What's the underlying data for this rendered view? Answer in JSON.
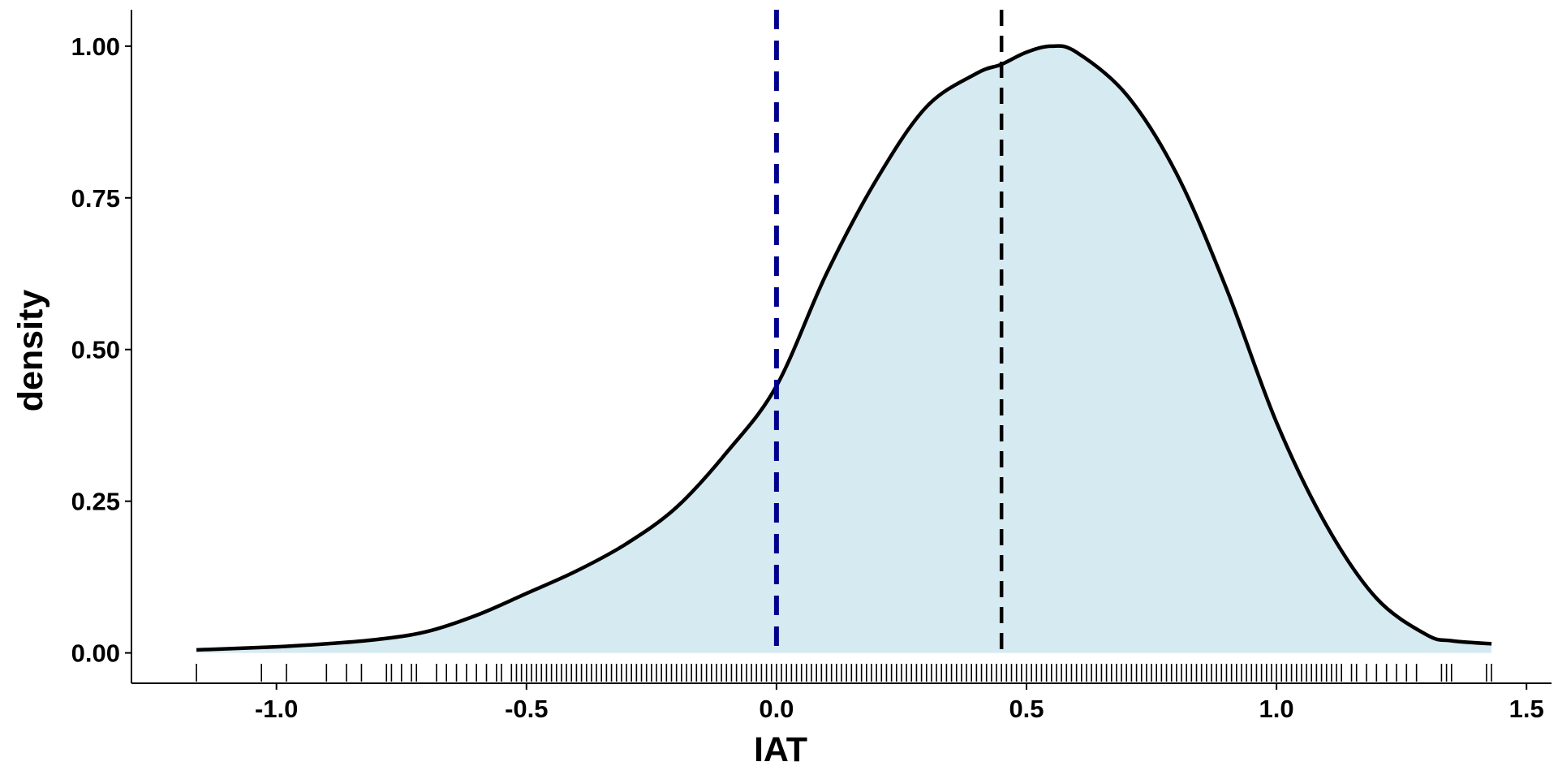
{
  "chart_data": {
    "type": "area",
    "title": "",
    "xlabel": "IAT",
    "ylabel": "density",
    "xlim": [
      -1.29,
      1.55
    ],
    "ylim": [
      -0.05,
      1.06
    ],
    "x_ticks": [
      -1.0,
      -0.5,
      0.0,
      0.5,
      1.0,
      1.5
    ],
    "x_tick_labels": [
      "-1.0",
      "-0.5",
      "0.0",
      "0.5",
      "1.0",
      "1.5"
    ],
    "y_ticks": [
      0.0,
      0.25,
      0.5,
      0.75,
      1.0
    ],
    "y_tick_labels": [
      "0.00",
      "0.25",
      "0.50",
      "0.75",
      "1.00"
    ],
    "grid": false,
    "legend": "none",
    "fill_color": "#d6eaf2",
    "line_color": "#000000",
    "series": [
      {
        "x": [
          -1.16,
          -1.0,
          -0.9,
          -0.8,
          -0.7,
          -0.6,
          -0.5,
          -0.4,
          -0.3,
          -0.2,
          -0.1,
          0.0,
          0.1,
          0.2,
          0.3,
          0.4,
          0.45,
          0.5,
          0.55,
          0.6,
          0.7,
          0.8,
          0.9,
          1.0,
          1.1,
          1.2,
          1.3,
          1.35,
          1.43
        ],
        "values": [
          0.005,
          0.01,
          0.015,
          0.022,
          0.035,
          0.062,
          0.098,
          0.135,
          0.18,
          0.24,
          0.33,
          0.44,
          0.625,
          0.78,
          0.9,
          0.955,
          0.97,
          0.99,
          1.0,
          0.99,
          0.92,
          0.79,
          0.6,
          0.38,
          0.21,
          0.09,
          0.03,
          0.02,
          0.015
        ]
      }
    ],
    "reference_lines": [
      {
        "x": 0.0,
        "color": "#00008b",
        "style": "dashed"
      },
      {
        "x": 0.45,
        "color": "#000000",
        "style": "dashed"
      }
    ],
    "rug": [
      -1.16,
      -1.03,
      -0.98,
      -0.9,
      -0.86,
      -0.83,
      -0.78,
      -0.77,
      -0.75,
      -0.73,
      -0.72,
      -0.68,
      -0.66,
      -0.64,
      -0.62,
      -0.6,
      -0.58,
      -0.56,
      -0.55,
      -0.53,
      -0.52,
      -0.51,
      -0.5,
      -0.49,
      -0.48,
      -0.47,
      -0.46,
      -0.45,
      -0.44,
      -0.43,
      -0.42,
      -0.41,
      -0.4,
      -0.39,
      -0.38,
      -0.37,
      -0.36,
      -0.35,
      -0.34,
      -0.33,
      -0.32,
      -0.31,
      -0.3,
      -0.29,
      -0.28,
      -0.27,
      -0.26,
      -0.25,
      -0.24,
      -0.23,
      -0.22,
      -0.21,
      -0.2,
      -0.19,
      -0.18,
      -0.17,
      -0.16,
      -0.15,
      -0.14,
      -0.13,
      -0.12,
      -0.11,
      -0.1,
      -0.09,
      -0.08,
      -0.07,
      -0.06,
      -0.05,
      -0.04,
      -0.03,
      -0.02,
      -0.01,
      0.0,
      0.01,
      0.02,
      0.03,
      0.04,
      0.05,
      0.06,
      0.07,
      0.08,
      0.09,
      0.1,
      0.11,
      0.12,
      0.13,
      0.14,
      0.15,
      0.16,
      0.17,
      0.18,
      0.19,
      0.2,
      0.21,
      0.22,
      0.23,
      0.24,
      0.25,
      0.26,
      0.27,
      0.28,
      0.29,
      0.3,
      0.31,
      0.32,
      0.33,
      0.34,
      0.35,
      0.36,
      0.37,
      0.38,
      0.39,
      0.4,
      0.41,
      0.42,
      0.43,
      0.44,
      0.45,
      0.46,
      0.47,
      0.48,
      0.49,
      0.5,
      0.51,
      0.52,
      0.53,
      0.54,
      0.55,
      0.56,
      0.57,
      0.58,
      0.59,
      0.6,
      0.61,
      0.62,
      0.63,
      0.64,
      0.65,
      0.66,
      0.67,
      0.68,
      0.69,
      0.7,
      0.71,
      0.72,
      0.73,
      0.74,
      0.75,
      0.76,
      0.77,
      0.78,
      0.79,
      0.8,
      0.81,
      0.82,
      0.83,
      0.84,
      0.85,
      0.86,
      0.87,
      0.88,
      0.89,
      0.9,
      0.91,
      0.92,
      0.93,
      0.94,
      0.95,
      0.96,
      0.97,
      0.98,
      0.99,
      1.0,
      1.01,
      1.02,
      1.03,
      1.04,
      1.05,
      1.06,
      1.07,
      1.08,
      1.09,
      1.1,
      1.11,
      1.12,
      1.13,
      1.15,
      1.16,
      1.18,
      1.2,
      1.22,
      1.24,
      1.26,
      1.28,
      1.33,
      1.34,
      1.35,
      1.42,
      1.43
    ]
  }
}
